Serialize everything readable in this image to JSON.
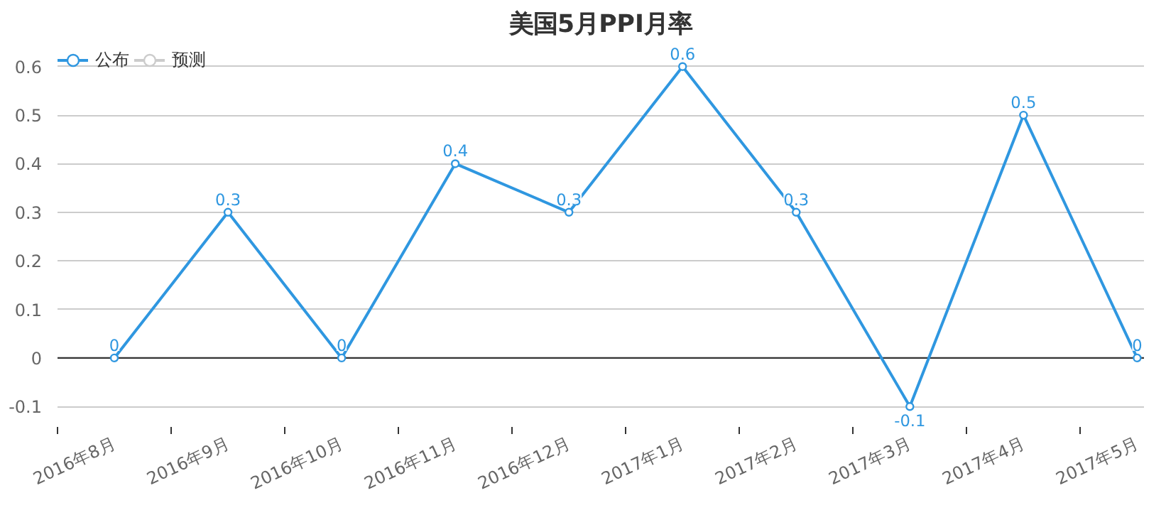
{
  "chart_data": {
    "type": "line",
    "title": "美国5月PPI月率",
    "categories": [
      "2016年8月",
      "2016年9月",
      "2016年10月",
      "2016年11月",
      "2016年12月",
      "2017年1月",
      "2017年2月",
      "2017年3月",
      "2017年4月",
      "2017年5月"
    ],
    "series": [
      {
        "name": "公布",
        "color": "#2f97e0",
        "values": [
          0,
          0.3,
          0,
          0.4,
          0.3,
          0.6,
          0.3,
          -0.1,
          0.5,
          0
        ]
      },
      {
        "name": "预测",
        "color": "#cccccc",
        "values": [
          null,
          null,
          null,
          null,
          null,
          null,
          null,
          null,
          null,
          null
        ]
      }
    ],
    "ylim": [
      -0.1,
      0.6
    ],
    "yticks": [
      -0.1,
      0,
      0.1,
      0.2,
      0.3,
      0.4,
      0.5,
      0.6
    ],
    "grid": "y",
    "legend": "top left",
    "marker": "circle",
    "data_labels": true
  }
}
